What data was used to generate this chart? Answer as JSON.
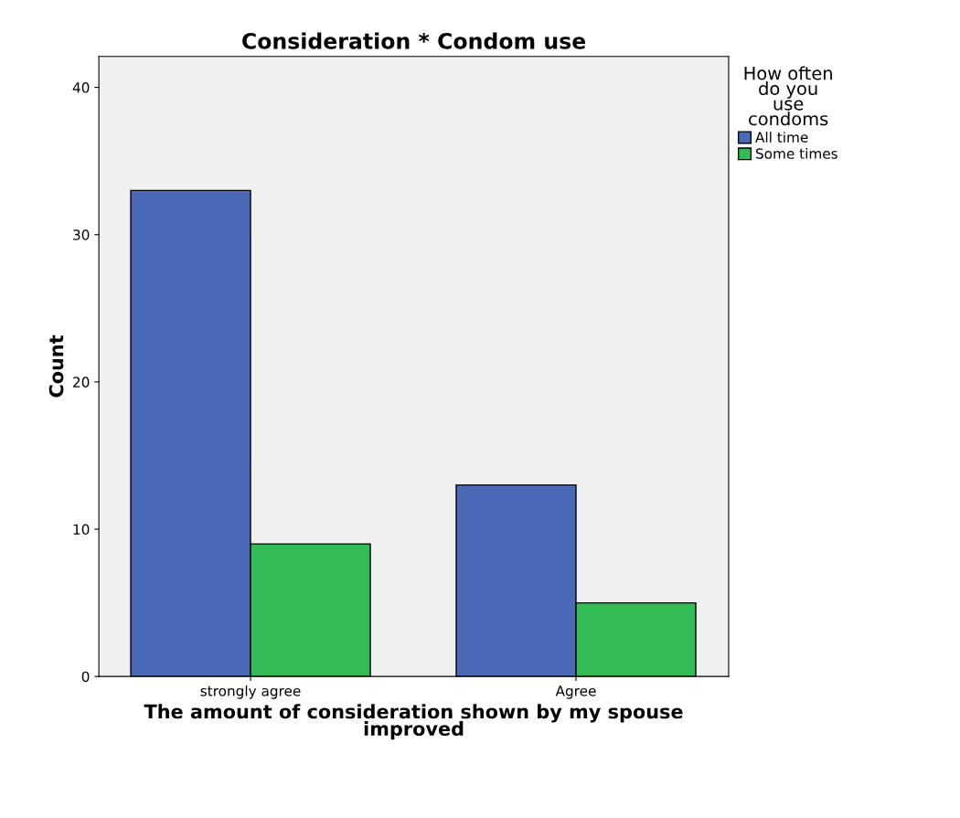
{
  "chart_data": {
    "type": "bar",
    "title": "Consideration * Condom use",
    "xlabel": "The amount of consideration shown by my spouse\nimproved",
    "ylabel": "Count",
    "categories": [
      "strongly agree",
      "Agree"
    ],
    "series": [
      {
        "name": "All time",
        "color": "#4a6ab8",
        "values": [
          33,
          13
        ]
      },
      {
        "name": "Some times",
        "color": "#33bb55",
        "values": [
          9,
          5
        ]
      }
    ],
    "legend_title": "How often\ndo you\nuse\ncondoms",
    "legend": "right",
    "ylim": [
      0,
      42.1
    ],
    "yticks": [
      0,
      10,
      20,
      30,
      40
    ],
    "grid": false
  }
}
